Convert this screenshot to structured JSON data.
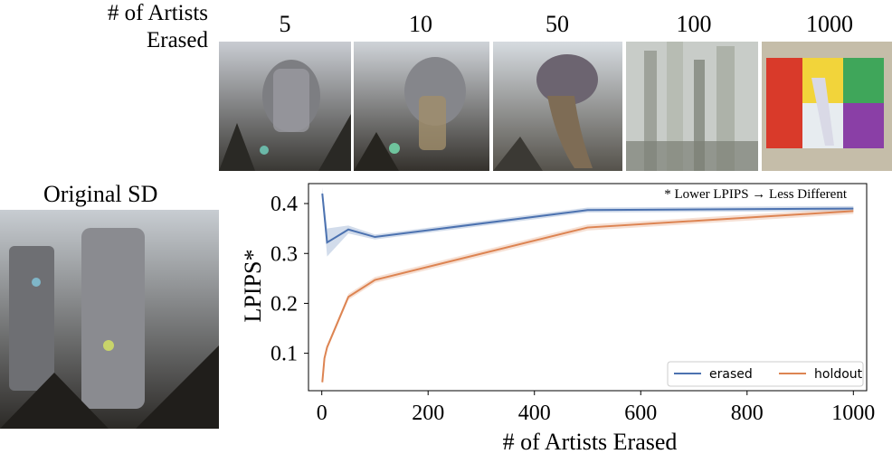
{
  "header": {
    "row_label_line1": "# of Artists",
    "row_label_line2": "Erased",
    "columns": [
      "5",
      "10",
      "50",
      "100",
      "1000"
    ]
  },
  "original": {
    "title": "Original SD"
  },
  "chart_data": {
    "type": "line",
    "annotation": "* Lower LPIPS → Less Different",
    "xlabel": "# of Artists Erased",
    "ylabel": "LPIPS*",
    "xlim": [
      -25,
      1025
    ],
    "ylim": [
      0.025,
      0.44
    ],
    "xticks": [
      0,
      200,
      400,
      600,
      800,
      1000
    ],
    "yticks": [
      0.1,
      0.2,
      0.3,
      0.4
    ],
    "ytick_labels": [
      "0.1",
      "0.2",
      "0.3",
      "0.4"
    ],
    "grid": false,
    "legend": "bottom-right",
    "series": [
      {
        "name": "erased",
        "color": "#4c72b0",
        "x": [
          1,
          10,
          50,
          100,
          500,
          1000
        ],
        "y": [
          0.42,
          0.322,
          0.348,
          0.333,
          0.387,
          0.39
        ],
        "band": [
          0.012,
          0.028,
          0.008,
          0.005,
          0.005,
          0.005
        ]
      },
      {
        "name": "holdout",
        "color": "#dd8452",
        "x": [
          1,
          5,
          10,
          50,
          100,
          500,
          1000
        ],
        "y": [
          0.042,
          0.09,
          0.112,
          0.213,
          0.247,
          0.352,
          0.385
        ],
        "band": [
          0.004,
          0.005,
          0.005,
          0.006,
          0.006,
          0.006,
          0.006
        ]
      }
    ]
  },
  "colors": {
    "erased": "#4c72b0",
    "holdout": "#dd8452"
  }
}
